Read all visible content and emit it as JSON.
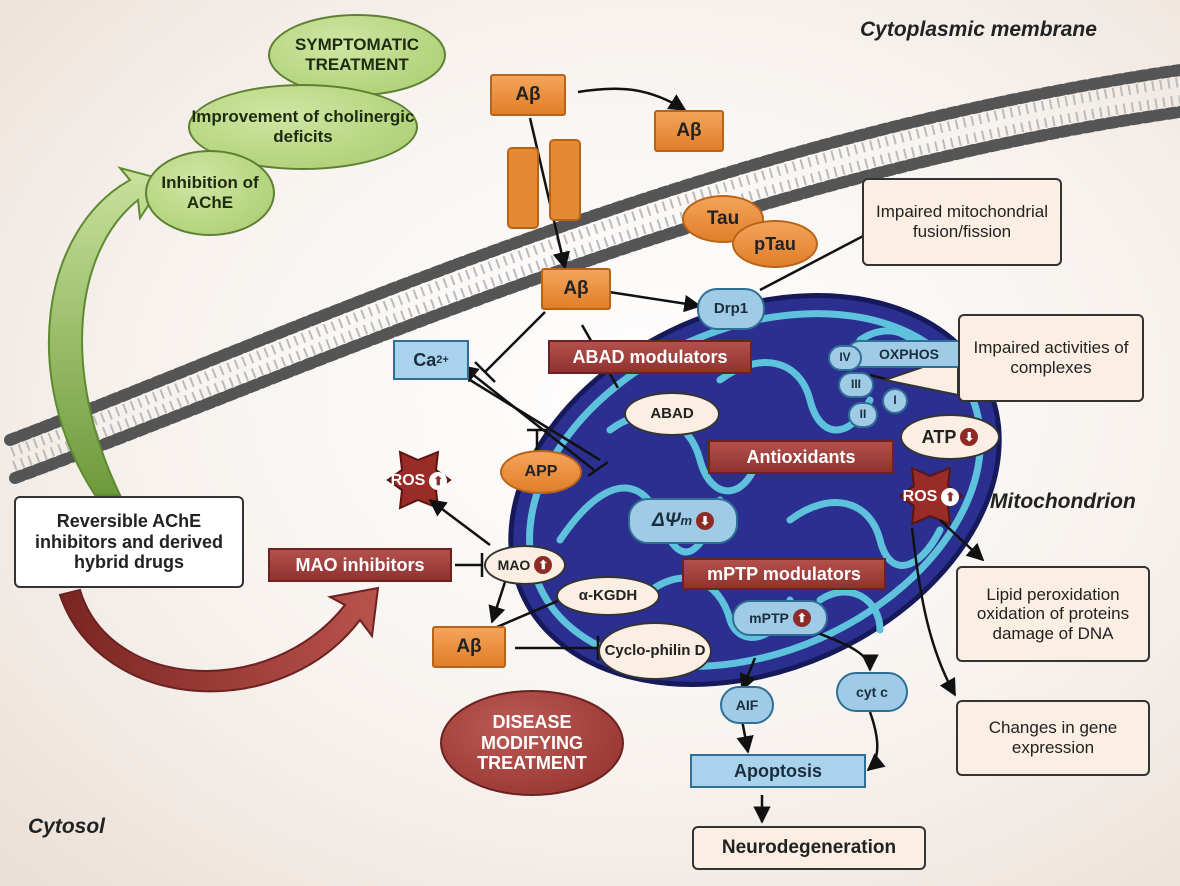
{
  "labels": {
    "cytoplasmic_membrane": "Cytoplasmic membrane",
    "mitochondrion": "Mitochondrion",
    "cytosol": "Cytosol",
    "symptomatic": "SYMPTOMATIC TREATMENT",
    "improvement": "Improvement of cholinergic deficits",
    "inhibition": "Inhibition of AChE",
    "abeta": "Aβ",
    "tau": "Tau",
    "ptau": "pTau",
    "impaired_fusion": "Impaired mitochondrial fusion/fission",
    "drp1": "Drp1",
    "ca": "Ca",
    "ca_sup": "2+",
    "abad_modulators": "ABAD modulators",
    "abad": "ABAD",
    "oxphos": "OXPHOS",
    "iv": "IV",
    "iii": "III",
    "ii": "II",
    "i": "I",
    "impaired_complexes": "Impaired activities of complexes",
    "atp": "ATP",
    "app": "APP",
    "antioxidants": "Antioxidants",
    "ros": "ROS",
    "delta_psi": "ΔΨ",
    "delta_psi_sub": "m",
    "reversible": "Reversible AChE inhibitors and derived hybrid drugs",
    "mao_inhibitors": "MAO inhibitors",
    "mao": "MAO",
    "mptp_modulators": "mPTP modulators",
    "akgdh": "α-KGDH",
    "mptp": "mPTP",
    "cyclophilin": "Cyclo-philin D",
    "lipid": "Lipid peroxidation oxidation of proteins damage of DNA",
    "aif": "AIF",
    "cytc": "cyt c",
    "changes_gene": "Changes in gene expression",
    "disease_modifying": "DISEASE MODIFYING TREATMENT",
    "apoptosis": "Apoptosis",
    "neurodegeneration": "Neurodegeneration"
  },
  "icons": {
    "down_arrow": "⬇",
    "up_arrow": "⬆"
  },
  "colors": {
    "orange": "#e58a33",
    "green": "#b5d67f",
    "blue": "#9fcbe6",
    "mito_dark": "#2b2f8f",
    "crista": "#5fc2dd",
    "red": "#9a3a36"
  }
}
